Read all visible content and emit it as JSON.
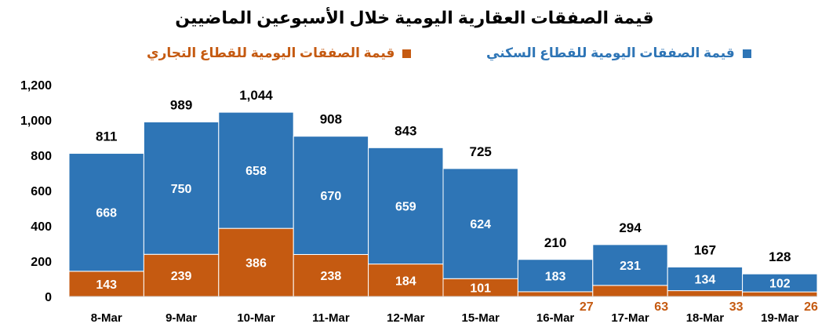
{
  "chart_data": {
    "type": "bar",
    "stacked": true,
    "title": "قيمة الصفقات العقارية اليومية خلال الأسبوعين الماضيين",
    "categories": [
      "8-Mar",
      "9-Mar",
      "10-Mar",
      "11-Mar",
      "12-Mar",
      "15-Mar",
      "16-Mar",
      "17-Mar",
      "18-Mar",
      "19-Mar"
    ],
    "series": [
      {
        "name": "قيمة الصفقات اليومية للقطاع التجاري",
        "color": "#c55a11",
        "values": [
          143,
          239,
          386,
          238,
          184,
          101,
          27,
          63,
          33,
          26
        ]
      },
      {
        "name": "قيمة الصفقات اليومية للقطاع السكني",
        "color": "#2e75b6",
        "values": [
          668,
          750,
          658,
          670,
          659,
          624,
          183,
          231,
          134,
          102
        ]
      }
    ],
    "totals": [
      811,
      989,
      1044,
      908,
      843,
      725,
      210,
      294,
      167,
      128
    ],
    "total_labels": [
      "811",
      "989",
      "1,044",
      "908",
      "843",
      "725",
      "210",
      "294",
      "167",
      "128"
    ],
    "ylim": [
      0,
      1200
    ],
    "yticks": [
      0,
      200,
      400,
      600,
      800,
      1000,
      1200
    ],
    "ytick_labels": [
      "0",
      "200",
      "400",
      "600",
      "800",
      "1,000",
      "1,200"
    ],
    "grid": false,
    "legend_position": "top",
    "xlabel": "",
    "ylabel": ""
  }
}
